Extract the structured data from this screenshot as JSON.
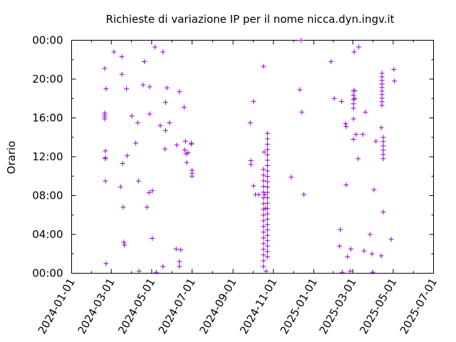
{
  "chart_data": {
    "type": "scatter",
    "title": "Richieste di variazione IP per il nome nicca.dyn.ingv.it",
    "xlabel": "",
    "ylabel": "Orario",
    "x_tick_labels": [
      "2024-01-01",
      "2024-03-01",
      "2024-05-01",
      "2024-07-01",
      "2024-09-01",
      "2024-11-01",
      "2025-01-01",
      "2025-03-01",
      "2025-05-01",
      "2025-07-01"
    ],
    "y_tick_labels": [
      "00:00",
      "04:00",
      "08:00",
      "12:00",
      "16:00",
      "20:00",
      "00:00"
    ],
    "xlim": [
      "2024-01-01",
      "2025-07-01"
    ],
    "ylim": [
      0,
      24
    ],
    "marker": "+",
    "color": "#9400d3",
    "grid": false,
    "series": [
      {
        "points": [
          [
            "2024-02-20",
            21.1
          ],
          [
            "2024-02-20",
            16.5
          ],
          [
            "2024-02-20",
            16.3
          ],
          [
            "2024-02-20",
            16.1
          ],
          [
            "2024-02-20",
            15.9
          ],
          [
            "2024-02-21",
            12.6
          ],
          [
            "2024-02-21",
            11.9
          ],
          [
            "2024-02-21",
            11.8
          ],
          [
            "2024-02-21",
            9.5
          ],
          [
            "2024-02-22",
            19.0
          ],
          [
            "2024-02-22",
            1.0
          ],
          [
            "2024-03-05",
            22.8
          ],
          [
            "2024-03-15",
            8.9
          ],
          [
            "2024-03-17",
            22.3
          ],
          [
            "2024-03-17",
            20.5
          ],
          [
            "2024-03-18",
            11.3
          ],
          [
            "2024-03-19",
            6.8
          ],
          [
            "2024-03-20",
            3.2
          ],
          [
            "2024-03-21",
            2.9
          ],
          [
            "2024-03-24",
            19.0
          ],
          [
            "2024-03-25",
            12.1
          ],
          [
            "2024-04-01",
            16.2
          ],
          [
            "2024-04-07",
            13.4
          ],
          [
            "2024-04-10",
            15.5
          ],
          [
            "2024-04-11",
            9.5
          ],
          [
            "2024-04-12",
            0.2
          ],
          [
            "2024-04-18",
            19.4
          ],
          [
            "2024-04-20",
            21.8
          ],
          [
            "2024-04-24",
            6.8
          ],
          [
            "2024-04-27",
            8.3
          ],
          [
            "2024-04-28",
            19.2
          ],
          [
            "2024-04-28",
            16.4
          ],
          [
            "2024-05-02",
            8.5
          ],
          [
            "2024-05-02",
            3.6
          ],
          [
            "2024-05-06",
            23.3
          ],
          [
            "2024-05-08",
            0.1
          ],
          [
            "2024-05-14",
            15.2
          ],
          [
            "2024-05-18",
            0.7
          ],
          [
            "2024-05-18",
            22.8
          ],
          [
            "2024-05-21",
            12.8
          ],
          [
            "2024-05-22",
            14.7
          ],
          [
            "2024-05-22",
            17.6
          ],
          [
            "2024-05-24",
            19.1
          ],
          [
            "2024-05-28",
            15.5
          ],
          [
            "2024-06-07",
            2.5
          ],
          [
            "2024-06-08",
            13.2
          ],
          [
            "2024-06-12",
            18.7
          ],
          [
            "2024-06-12",
            1.2
          ],
          [
            "2024-06-12",
            0.7
          ],
          [
            "2024-06-14",
            2.4
          ],
          [
            "2024-06-19",
            17.1
          ],
          [
            "2024-06-20",
            12.7
          ],
          [
            "2024-06-21",
            13.6
          ],
          [
            "2024-06-22",
            12.3
          ],
          [
            "2024-06-23",
            11.4
          ],
          [
            "2024-06-25",
            12.4
          ],
          [
            "2024-06-30",
            13.4
          ],
          [
            "2024-06-30",
            13.3
          ],
          [
            "2024-07-01",
            10.6
          ],
          [
            "2024-07-01",
            10.3
          ],
          [
            "2024-07-01",
            10.0
          ],
          [
            "2024-09-27",
            15.5
          ],
          [
            "2024-09-28",
            11.6
          ],
          [
            "2024-09-28",
            11.2
          ],
          [
            "2024-10-02",
            17.7
          ],
          [
            "2024-10-02",
            9.0
          ],
          [
            "2024-10-05",
            8.1
          ],
          [
            "2024-10-10",
            8.1
          ],
          [
            "2024-10-17",
            21.3
          ],
          [
            "2024-10-18",
            12.5
          ],
          [
            "2024-10-19",
            8.1
          ],
          [
            "2024-10-20",
            6.7
          ],
          [
            "2024-10-21",
            0.2
          ],
          [
            "2024-11-28",
            9.9
          ],
          [
            "2024-12-11",
            18.9
          ],
          [
            "2024-12-13",
            24.0
          ],
          [
            "2024-12-14",
            16.6
          ],
          [
            "2024-12-17",
            8.1
          ],
          [
            "2025-01-27",
            21.8
          ],
          [
            "2025-02-01",
            18.0
          ],
          [
            "2025-02-09",
            2.8
          ],
          [
            "2025-02-10",
            4.5
          ],
          [
            "2025-02-12",
            17.7
          ],
          [
            "2025-02-13",
            0.1
          ],
          [
            "2025-02-18",
            15.4
          ],
          [
            "2025-02-19",
            15.1
          ],
          [
            "2025-02-19",
            9.1
          ],
          [
            "2025-02-21",
            1.7
          ],
          [
            "2025-02-25",
            0.2
          ],
          [
            "2025-02-26",
            2.5
          ],
          [
            "2025-03-03",
            22.8
          ],
          [
            "2025-03-02",
            15.9
          ],
          [
            "2025-03-02",
            13.8
          ],
          [
            "2025-03-06",
            14.3
          ],
          [
            "2025-03-09",
            11.8
          ],
          [
            "2025-03-10",
            23.3
          ],
          [
            "2025-03-16",
            14.3
          ],
          [
            "2025-03-18",
            2.3
          ],
          [
            "2025-03-20",
            16.6
          ],
          [
            "2025-03-27",
            4.0
          ],
          [
            "2025-03-30",
            2.0
          ],
          [
            "2025-03-31",
            0.1
          ],
          [
            "2025-04-02",
            8.6
          ],
          [
            "2025-04-05",
            13.6
          ],
          [
            "2025-04-13",
            15.0
          ],
          [
            "2025-04-13",
            1.8
          ],
          [
            "2025-04-16",
            6.3
          ],
          [
            "2025-04-28",
            3.5
          ],
          [
            "2025-05-02",
            21.0
          ],
          [
            "2025-05-03",
            19.8
          ]
        ],
        "stacks": [
          {
            "date": "2024-10-17",
            "from": 0.7,
            "to": 10.7,
            "count": 18
          },
          {
            "date": "2024-10-23",
            "from": 1.7,
            "to": 14.4,
            "count": 24
          },
          {
            "date": "2025-03-02",
            "from": 17.0,
            "to": 18.8,
            "count": 5
          },
          {
            "date": "2025-03-04",
            "from": 18.0,
            "to": 18.8,
            "count": 2
          },
          {
            "date": "2025-04-14",
            "from": 17.3,
            "to": 20.6,
            "count": 10
          },
          {
            "date": "2025-04-16",
            "from": 11.8,
            "to": 14.0,
            "count": 6
          }
        ]
      }
    ]
  }
}
